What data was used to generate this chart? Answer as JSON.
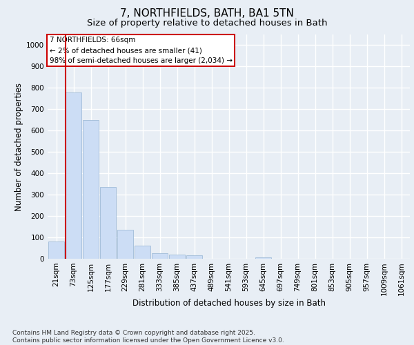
{
  "title": "7, NORTHFIELDS, BATH, BA1 5TN",
  "subtitle": "Size of property relative to detached houses in Bath",
  "xlabel": "Distribution of detached houses by size in Bath",
  "ylabel": "Number of detached properties",
  "bar_color": "#ccddf5",
  "bar_edge_color": "#a0bcd8",
  "highlight_line_color": "#cc0000",
  "background_color": "#e8eef5",
  "plot_bg_color": "#e8eef5",
  "grid_color": "#ffffff",
  "categories": [
    "21sqm",
    "73sqm",
    "125sqm",
    "177sqm",
    "229sqm",
    "281sqm",
    "333sqm",
    "385sqm",
    "437sqm",
    "489sqm",
    "541sqm",
    "593sqm",
    "645sqm",
    "697sqm",
    "749sqm",
    "801sqm",
    "853sqm",
    "905sqm",
    "957sqm",
    "1009sqm",
    "1061sqm"
  ],
  "values": [
    82,
    780,
    650,
    335,
    135,
    60,
    25,
    20,
    15,
    0,
    0,
    0,
    5,
    0,
    0,
    0,
    0,
    0,
    0,
    0,
    0
  ],
  "ylim": [
    0,
    1050
  ],
  "yticks": [
    0,
    100,
    200,
    300,
    400,
    500,
    600,
    700,
    800,
    900,
    1000
  ],
  "annotation_box_text": "7 NORTHFIELDS: 66sqm\n← 2% of detached houses are smaller (41)\n98% of semi-detached houses are larger (2,034) →",
  "highlight_bar_index": 1,
  "footer_text": "Contains HM Land Registry data © Crown copyright and database right 2025.\nContains public sector information licensed under the Open Government Licence v3.0.",
  "title_fontsize": 11,
  "subtitle_fontsize": 9.5,
  "axis_label_fontsize": 8.5,
  "tick_fontsize": 7.5,
  "annotation_fontsize": 7.5,
  "footer_fontsize": 6.5
}
